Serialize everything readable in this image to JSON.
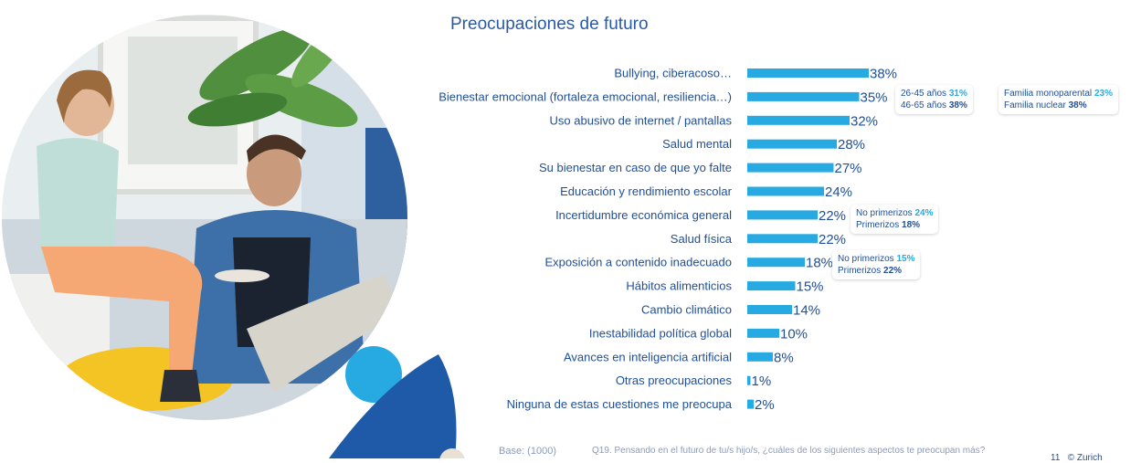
{
  "title": "Preocupaciones de futuro",
  "chart_data": {
    "type": "bar",
    "orientation": "horizontal",
    "categories": [
      "Bullying, ciberacoso…",
      "Bienestar emocional (fortaleza emocional, resiliencia…)",
      "Uso abusivo de internet / pantallas",
      "Salud mental",
      "Su bienestar en caso de que yo falte",
      "Educación y rendimiento escolar",
      "Incertidumbre económica general",
      "Salud física",
      "Exposición a contenido inadecuado",
      "Hábitos alimenticios",
      "Cambio climático",
      "Inestabilidad política global",
      "Avances en inteligencia artificial",
      "Otras preocupaciones",
      "Ninguna de estas cuestiones me preocupa"
    ],
    "values": [
      38,
      35,
      32,
      28,
      27,
      24,
      22,
      22,
      18,
      15,
      14,
      10,
      8,
      1,
      2
    ],
    "value_labels": [
      "38%",
      "35%",
      "32%",
      "28%",
      "27%",
      "24%",
      "22%",
      "22%",
      "18%",
      "15%",
      "14%",
      "10%",
      "8%",
      "1%",
      "2%"
    ],
    "bar_color": "#27aae1",
    "label_color": "#1f4f96",
    "title": "Preocupaciones de futuro",
    "xlabel": "",
    "ylabel": "",
    "xlim": [
      0,
      100
    ],
    "grid": false,
    "legend": "none",
    "annotations": [
      {
        "category": "Bienestar emocional (fortaleza emocional, resiliencia…)",
        "lines": [
          {
            "label": "26-45 años",
            "value": "31%"
          },
          {
            "label": "46-65 años",
            "value": "38%"
          }
        ]
      },
      {
        "category": "Bienestar emocional (fortaleza emocional, resiliencia…)",
        "lines": [
          {
            "label": "Familia monoparental",
            "value": "23%"
          },
          {
            "label": "Familia nuclear",
            "value": "38%"
          }
        ]
      },
      {
        "category": "Incertidumbre económica general",
        "lines": [
          {
            "label": "No primerizos",
            "value": "24%"
          },
          {
            "label": "Primerizos",
            "value": "18%"
          }
        ]
      },
      {
        "category": "Exposición a contenido inadecuado",
        "lines": [
          {
            "label": "No primerizos",
            "value": "15%"
          },
          {
            "label": "Primerizos",
            "value": "22%"
          }
        ]
      }
    ]
  },
  "footer": {
    "base": "Base: (1000)",
    "question": "Q19. Pensando en el futuro de tu/s hijo/s, ¿cuáles de los siguientes aspectos te preocupan más?",
    "page": "11",
    "brand": "© Zurich"
  },
  "colors": {
    "accent_dark_blue": "#1f4f96",
    "accent_light_blue": "#27aae1",
    "shape_blue": "#1e5aa8"
  },
  "photo": {
    "description_icon": "father-and-son-photo"
  }
}
